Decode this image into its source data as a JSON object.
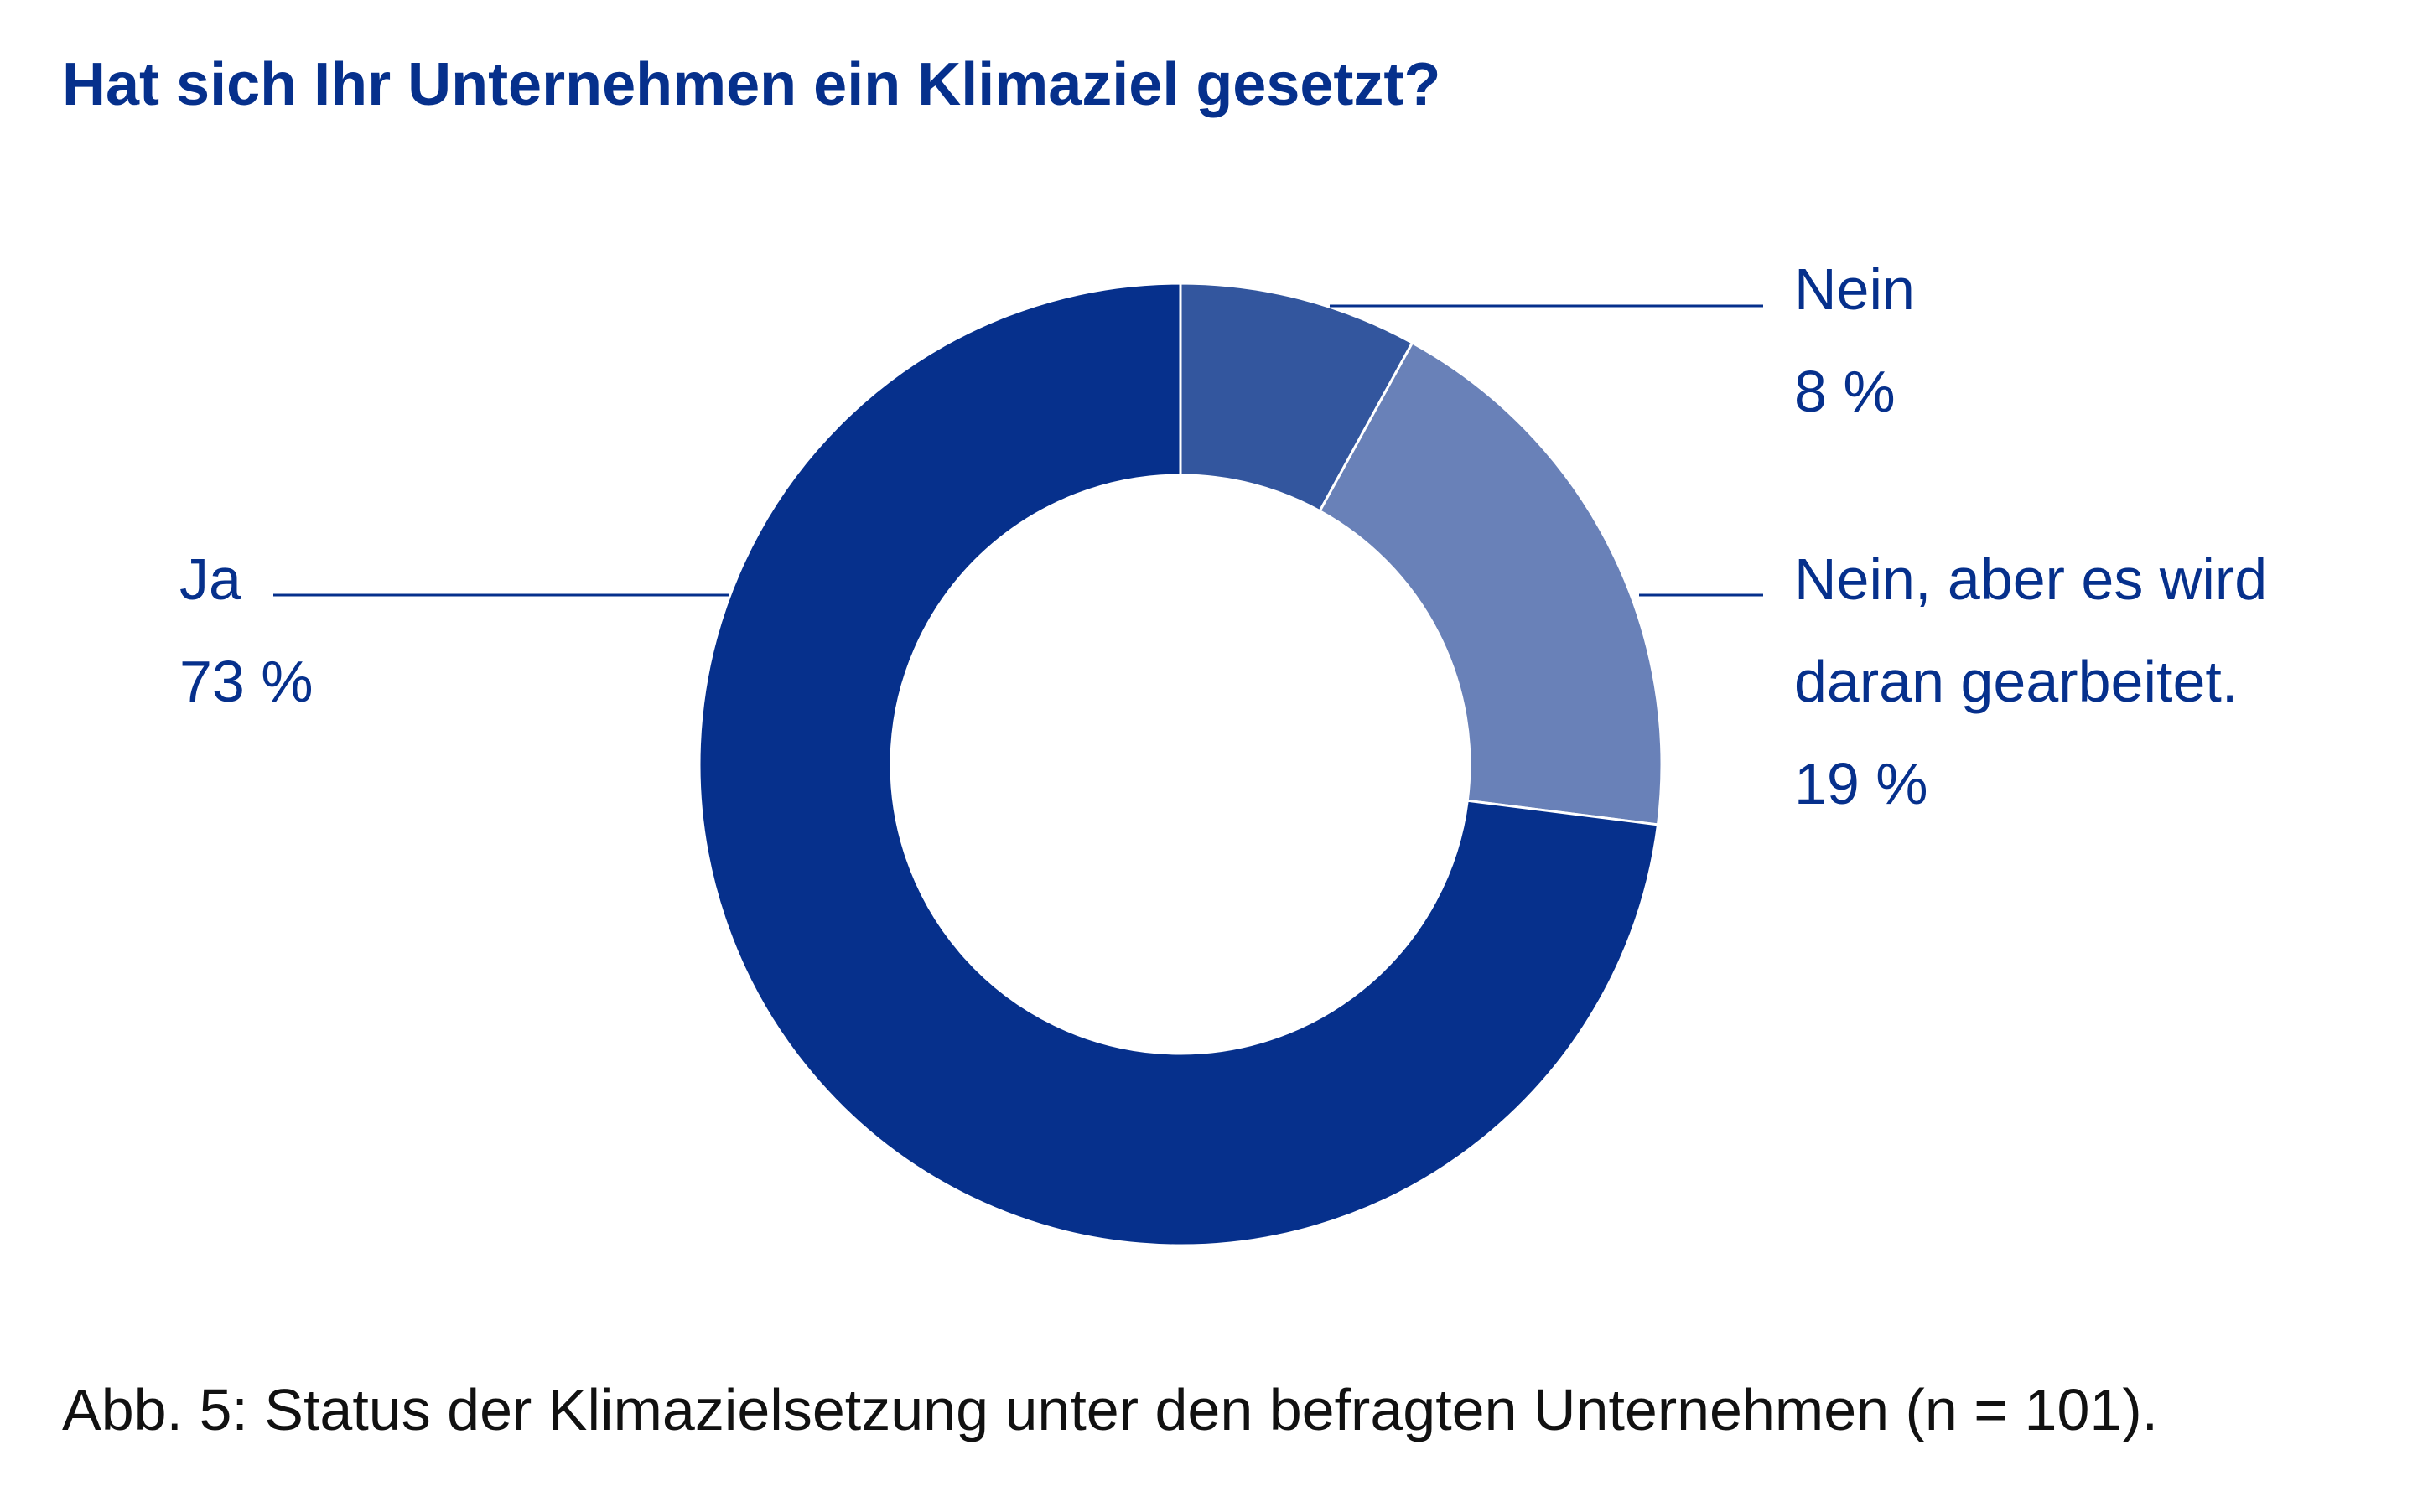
{
  "title": "Hat sich Ihr Unternehmen ein Klimaziel gesetzt?",
  "caption": "Abb. 5: Status der Klimazielsetzung unter den befragten Unternehmen (n = 101).",
  "chart_data": {
    "type": "pie",
    "title": "Hat sich Ihr Unternehmen ein Klimaziel gesetzt?",
    "slices": [
      {
        "label_lines": [
          "Nein"
        ],
        "value": 8,
        "value_label": "8 %",
        "color": "#33569e"
      },
      {
        "label_lines": [
          "Nein, aber es wird",
          "daran gearbeitet."
        ],
        "value": 19,
        "value_label": "19 %",
        "color": "#6981b8"
      },
      {
        "label_lines": [
          "Ja"
        ],
        "value": 73,
        "value_label": "73 %",
        "color": "#06308c"
      }
    ],
    "donut": true,
    "legend": "none"
  },
  "colors": {
    "title": "#06308c",
    "labels": "#06308c",
    "caption": "#111111",
    "leader_lines": "#06308c"
  }
}
